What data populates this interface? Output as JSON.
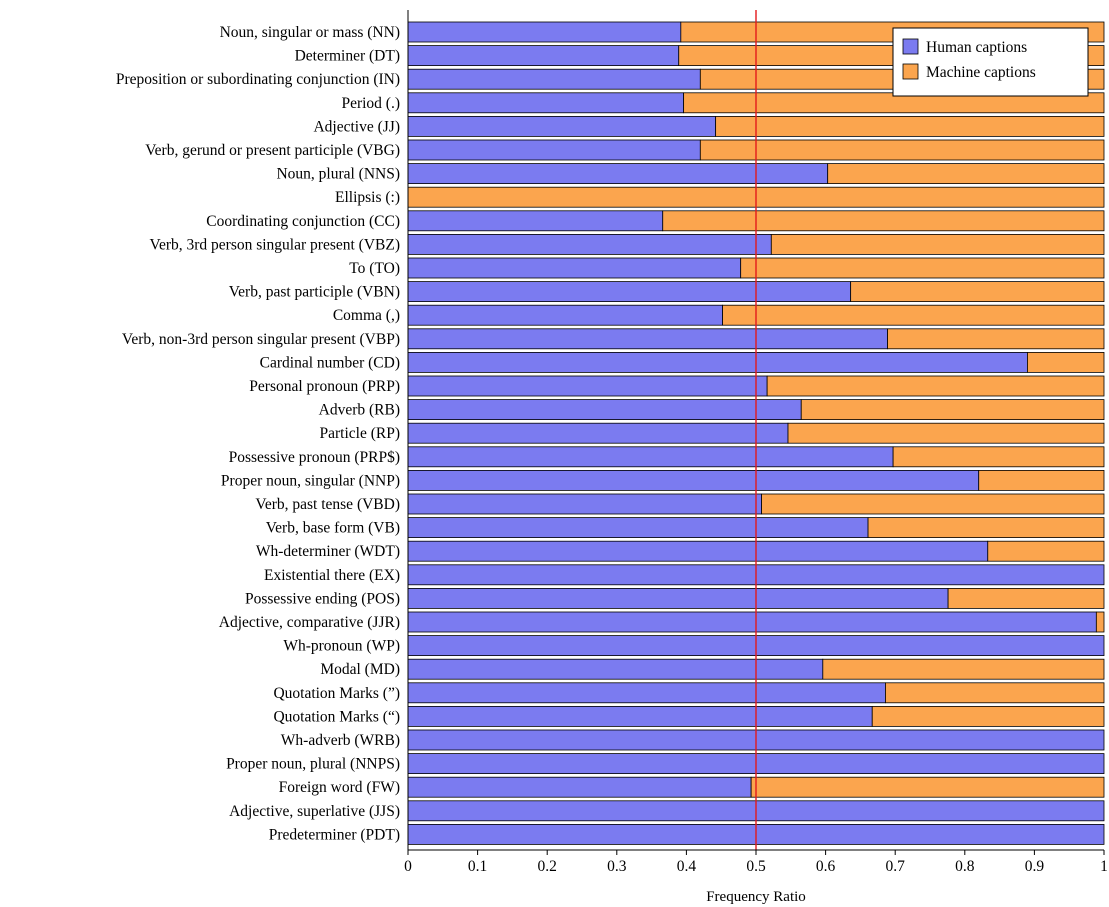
{
  "chart_data": {
    "type": "bar",
    "stacked": true,
    "orientation": "horizontal",
    "xlabel": "Frequency Ratio",
    "ylabel": "",
    "xlim": [
      0,
      1
    ],
    "x_ticks": [
      "0",
      "0.1",
      "0.2",
      "0.3",
      "0.4",
      "0.5",
      "0.6",
      "0.7",
      "0.8",
      "0.9",
      "1"
    ],
    "reference_line": {
      "x": 0.5,
      "color": "#e41a1c"
    },
    "legend_position": "top-right",
    "grid": false,
    "categories": [
      "Noun, singular or mass (NN)",
      "Determiner (DT)",
      "Preposition or subordinating conjunction (IN)",
      "Period (.)",
      "Adjective (JJ)",
      "Verb, gerund or present participle (VBG)",
      "Noun, plural (NNS)",
      "Ellipsis (:)",
      "Coordinating conjunction (CC)",
      "Verb, 3rd person singular present (VBZ)",
      "To (TO)",
      "Verb, past participle (VBN)",
      "Comma (,)",
      "Verb, non-3rd person singular present (VBP)",
      "Cardinal number (CD)",
      "Personal pronoun (PRP)",
      "Adverb (RB)",
      "Particle (RP)",
      "Possessive pronoun (PRP$)",
      "Proper noun, singular (NNP)",
      "Verb, past tense (VBD)",
      "Verb, base form (VB)",
      "Wh-determiner (WDT)",
      "Existential there (EX)",
      "Possessive ending (POS)",
      "Adjective, comparative (JJR)",
      "Wh-pronoun (WP)",
      "Modal (MD)",
      "Quotation Marks (”)",
      "Quotation Marks (“)",
      "Wh-adverb (WRB)",
      "Proper noun, plural (NNPS)",
      "Foreign word (FW)",
      "Adjective, superlative (JJS)",
      "Predeterminer (PDT)"
    ],
    "series": [
      {
        "name": "Human captions",
        "color": "#7b7bf0",
        "values": [
          0.392,
          0.389,
          0.42,
          0.396,
          0.442,
          0.42,
          0.603,
          0.0,
          0.366,
          0.522,
          0.478,
          0.636,
          0.452,
          0.689,
          0.89,
          0.516,
          0.565,
          0.546,
          0.697,
          0.82,
          0.508,
          0.661,
          0.833,
          1.0,
          0.776,
          0.989,
          1.0,
          0.596,
          0.686,
          0.667,
          1.0,
          1.0,
          0.493,
          1.0,
          1.0
        ]
      },
      {
        "name": "Machine captions",
        "color": "#fba54e",
        "values": [
          0.608,
          0.611,
          0.58,
          0.604,
          0.558,
          0.58,
          0.397,
          1.0,
          0.634,
          0.478,
          0.522,
          0.364,
          0.548,
          0.311,
          0.11,
          0.484,
          0.435,
          0.454,
          0.303,
          0.18,
          0.492,
          0.339,
          0.167,
          0.0,
          0.224,
          0.011,
          0.0,
          0.404,
          0.314,
          0.333,
          0.0,
          0.0,
          0.507,
          0.0,
          0.0
        ]
      }
    ]
  }
}
